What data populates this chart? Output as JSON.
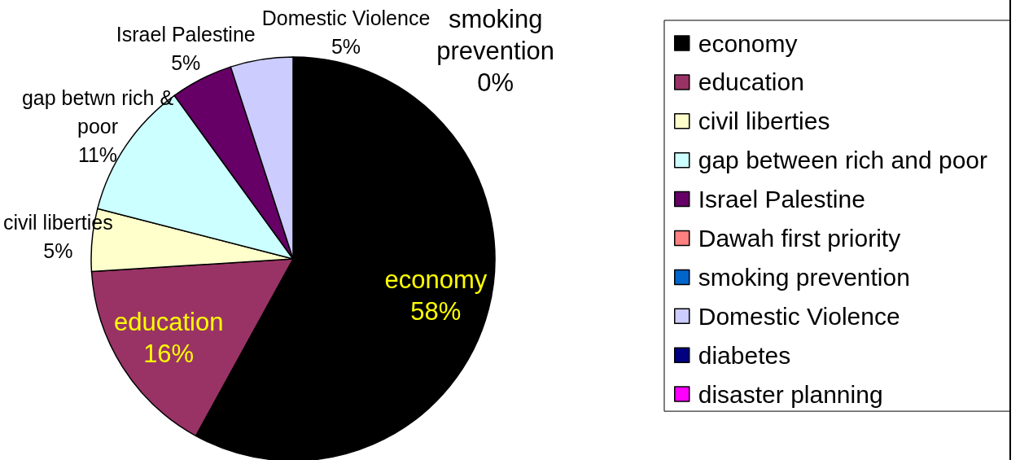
{
  "chart_data": {
    "type": "pie",
    "categories": [
      "economy",
      "education",
      "civil liberties",
      "gap between rich and poor",
      "Israel Palestine",
      "Dawah first priority",
      "smoking prevention",
      "Domestic Violence",
      "diabetes",
      "disaster planning"
    ],
    "values": [
      58,
      16,
      5,
      11,
      5,
      0,
      0,
      5,
      0,
      0
    ],
    "colors": [
      "#000000",
      "#993366",
      "#ffffcc",
      "#ccffff",
      "#660066",
      "#ff8080",
      "#0066cc",
      "#ccccff",
      "#000080",
      "#ff00ff"
    ],
    "value_labels": [
      "economy\n58%",
      "education\n16%",
      "civil liberties\n5%",
      "gap betwn rich &\npoor\n11%",
      "Israel Palestine\n5%",
      null,
      "smoking\nprevention\n0%",
      "Domestic Violence\n5%",
      null,
      null
    ],
    "legend": "right"
  }
}
